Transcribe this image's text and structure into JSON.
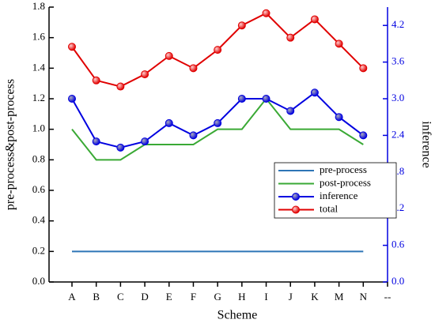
{
  "chart_data": {
    "type": "line",
    "xlabel": "Scheme",
    "ylabel": "pre-process&post-process",
    "y2label": "inference",
    "categories": [
      "A",
      "B",
      "C",
      "D",
      "E",
      "F",
      "G",
      "H",
      "I",
      "J",
      "K",
      "M",
      "N",
      "--"
    ],
    "series": [
      {
        "name": "pre-process",
        "color": "#2e75b6",
        "marker": false,
        "values": [
          0.2,
          0.2,
          0.2,
          0.2,
          0.2,
          0.2,
          0.2,
          0.2,
          0.2,
          0.2,
          0.2,
          0.2,
          0.2,
          null
        ]
      },
      {
        "name": "post-process",
        "color": "#3aa935",
        "marker": false,
        "values": [
          1.0,
          0.8,
          0.8,
          0.9,
          0.9,
          0.9,
          1.0,
          1.0,
          1.2,
          1.0,
          1.0,
          1.0,
          0.9,
          null
        ]
      },
      {
        "name": "inference",
        "color": "#0000e0",
        "marker": true,
        "axis": "y2",
        "values": [
          3.0,
          2.3,
          2.2,
          2.3,
          2.6,
          2.4,
          2.6,
          3.0,
          3.0,
          2.8,
          3.1,
          2.7,
          2.4,
          null
        ]
      },
      {
        "name": "total",
        "color": "#e00000",
        "marker": true,
        "axis": "y2",
        "values": [
          3.85,
          3.3,
          3.2,
          3.4,
          3.7,
          3.5,
          3.8,
          4.2,
          4.4,
          4.0,
          4.3,
          3.9,
          3.5,
          null
        ]
      }
    ],
    "ylim": [
      0,
      1.8
    ],
    "yticks": [
      {
        "value": 0,
        "label": "0.0"
      },
      0.2,
      0.4,
      0.6,
      0.8,
      {
        "value": 1,
        "label": "1.0"
      },
      1.2,
      1.4,
      1.6,
      1.8
    ],
    "y2lim": [
      0,
      4.5
    ],
    "y2ticks": [
      {
        "value": 0,
        "label": "0.0"
      },
      0.6,
      1.2,
      1.8,
      2.4,
      {
        "value": 3,
        "label": "3.0"
      },
      3.6,
      4.2
    ],
    "y2color": "#0000e0",
    "legend": "right"
  }
}
